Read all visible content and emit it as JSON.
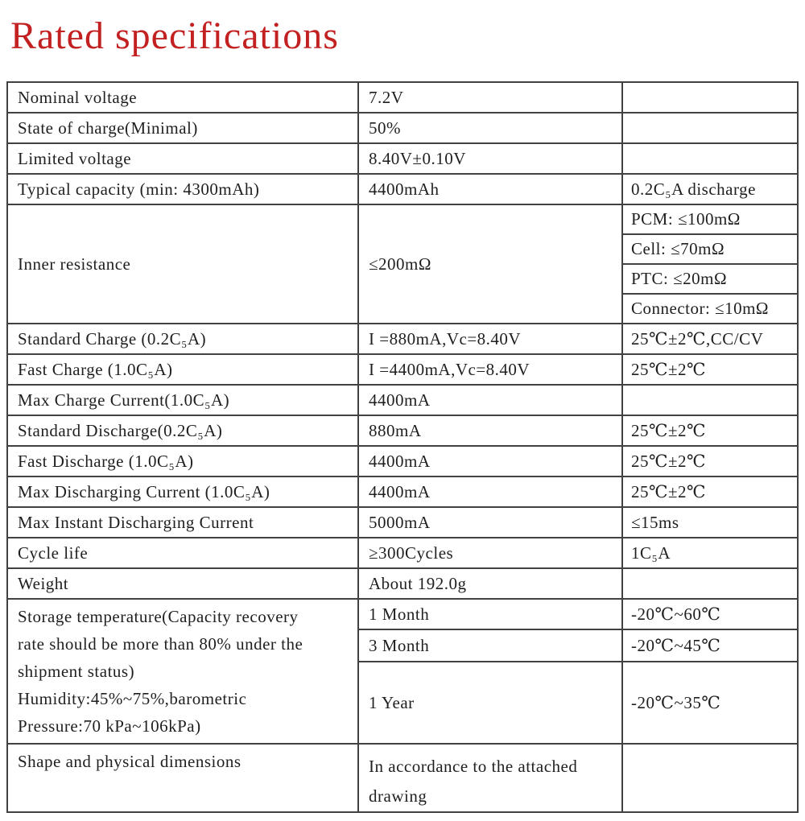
{
  "page": {
    "title": "Rated specifications"
  },
  "colors": {
    "title_red": "#c32121",
    "border": "#414141",
    "text": "#1f1f1f"
  },
  "table": {
    "nominal_voltage": {
      "label": "Nominal voltage",
      "value": "7.2V",
      "note": ""
    },
    "state_of_charge": {
      "label": "State of charge(Minimal)",
      "value": "50%",
      "note": ""
    },
    "limited_voltage": {
      "label": "Limited voltage",
      "value": "8.40V±0.10V",
      "note": ""
    },
    "typical_capacity": {
      "label": "Typical capacity (min: 4300mAh)",
      "value": "4400mAh",
      "note": "0.2C₅A discharge"
    },
    "inner_resistance": {
      "label": "Inner resistance",
      "value": "≤200mΩ",
      "notes": [
        "PCM: ≤100mΩ",
        "Cell: ≤70mΩ",
        "PTC: ≤20mΩ",
        "Connector: ≤10mΩ"
      ]
    },
    "standard_charge": {
      "label": "Standard Charge (0.2C₅A)",
      "value": "I =880mA,Vc=8.40V",
      "note": "25℃±2℃,CC/CV"
    },
    "fast_charge": {
      "label": "Fast Charge (1.0C₅A)",
      "value": "I =4400mA,Vc=8.40V",
      "note": "25℃±2℃"
    },
    "max_charge_current": {
      "label": "Max Charge Current(1.0C₅A)",
      "value": "4400mA",
      "note": ""
    },
    "standard_discharge": {
      "label": "Standard Discharge(0.2C₅A)",
      "value": "880mA",
      "note": "25℃±2℃"
    },
    "fast_discharge": {
      "label": "Fast Discharge (1.0C₅A)",
      "value": "4400mA",
      "note": "25℃±2℃"
    },
    "max_discharging_current": {
      "label": "Max Discharging Current (1.0C₅A)",
      "value": "4400mA",
      "note": "25℃±2℃"
    },
    "max_instant_discharging_current": {
      "label": "Max Instant Discharging Current",
      "value": "5000mA",
      "note": "≤15ms"
    },
    "cycle_life": {
      "label": "Cycle life",
      "value": "≥300Cycles",
      "note": "1C₅A"
    },
    "weight": {
      "label": "Weight",
      "value": "About 192.0g",
      "note": ""
    },
    "storage_temperature": {
      "label_lines": [
        "Storage temperature(Capacity recovery",
        "rate should be more than 80% under the",
        "shipment status)",
        "Humidity:45%~75%,barometric",
        "Pressure:70 kPa~106kPa)"
      ],
      "periods": [
        {
          "label": "1 Month",
          "value": "-20℃~60℃"
        },
        {
          "label": "3 Month",
          "value": "-20℃~45℃"
        },
        {
          "label": "1 Year",
          "value": "-20℃~35℃"
        }
      ]
    },
    "shape": {
      "label": "Shape and physical dimensions",
      "value": "In accordance to the attached drawing",
      "note": ""
    }
  }
}
